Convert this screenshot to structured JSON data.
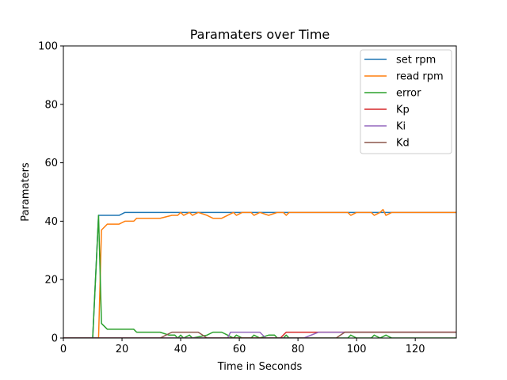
{
  "chart_data": {
    "type": "line",
    "title": "Paramaters over Time",
    "xlabel": "Time in Seconds",
    "ylabel": "Paramaters",
    "xlim": [
      0,
      134
    ],
    "ylim": [
      0,
      100
    ],
    "xticks": [
      0,
      20,
      40,
      60,
      80,
      100,
      120
    ],
    "yticks": [
      0,
      20,
      40,
      60,
      80,
      100
    ],
    "grid": false,
    "legend_position": "top-right",
    "series": [
      {
        "name": "set rpm",
        "color": "#1f77b4",
        "points": [
          [
            0,
            0
          ],
          [
            10,
            0
          ],
          [
            12,
            42
          ],
          [
            19,
            42
          ],
          [
            21,
            43
          ],
          [
            40,
            43
          ],
          [
            41,
            43
          ],
          [
            60,
            43
          ],
          [
            80,
            43
          ],
          [
            100,
            43
          ],
          [
            120,
            43
          ],
          [
            134,
            43
          ]
        ]
      },
      {
        "name": "read rpm",
        "color": "#ff7f0e",
        "points": [
          [
            0,
            0
          ],
          [
            12,
            0
          ],
          [
            13,
            37
          ],
          [
            15,
            39
          ],
          [
            19,
            39
          ],
          [
            21,
            40
          ],
          [
            24,
            40
          ],
          [
            25,
            41
          ],
          [
            33,
            41
          ],
          [
            37,
            42
          ],
          [
            39,
            42
          ],
          [
            40,
            43
          ],
          [
            41,
            42
          ],
          [
            43,
            43
          ],
          [
            44,
            42
          ],
          [
            46,
            43
          ],
          [
            49,
            42
          ],
          [
            51,
            41
          ],
          [
            54,
            41
          ],
          [
            56,
            42
          ],
          [
            58,
            43
          ],
          [
            59,
            42
          ],
          [
            61,
            43
          ],
          [
            64,
            43
          ],
          [
            65,
            42
          ],
          [
            67,
            43
          ],
          [
            70,
            42
          ],
          [
            73,
            43
          ],
          [
            75,
            43
          ],
          [
            76,
            42
          ],
          [
            77,
            43
          ],
          [
            80,
            43
          ],
          [
            97,
            43
          ],
          [
            98,
            42
          ],
          [
            100,
            43
          ],
          [
            105,
            43
          ],
          [
            106,
            42
          ],
          [
            108,
            43
          ],
          [
            109,
            44
          ],
          [
            110,
            42
          ],
          [
            112,
            43
          ],
          [
            120,
            43
          ],
          [
            134,
            43
          ]
        ]
      },
      {
        "name": "error",
        "color": "#2ca02c",
        "points": [
          [
            0,
            0
          ],
          [
            10,
            0
          ],
          [
            12,
            42
          ],
          [
            13,
            5
          ],
          [
            15,
            3
          ],
          [
            24,
            3
          ],
          [
            25,
            2
          ],
          [
            33,
            2
          ],
          [
            36,
            1
          ],
          [
            38,
            1
          ],
          [
            39,
            0
          ],
          [
            40,
            1
          ],
          [
            41,
            0
          ],
          [
            43,
            1
          ],
          [
            44,
            0
          ],
          [
            49,
            1
          ],
          [
            51,
            2
          ],
          [
            54,
            2
          ],
          [
            56,
            1
          ],
          [
            58,
            0
          ],
          [
            59,
            1
          ],
          [
            61,
            0
          ],
          [
            64,
            0
          ],
          [
            65,
            1
          ],
          [
            67,
            0
          ],
          [
            70,
            1
          ],
          [
            72,
            1
          ],
          [
            73,
            0
          ],
          [
            75,
            0
          ],
          [
            76,
            1
          ],
          [
            77,
            0
          ],
          [
            97,
            0
          ],
          [
            98,
            1
          ],
          [
            100,
            0
          ],
          [
            105,
            0
          ],
          [
            106,
            1
          ],
          [
            108,
            0
          ],
          [
            110,
            1
          ],
          [
            112,
            0
          ],
          [
            134,
            0
          ]
        ]
      },
      {
        "name": "Kp",
        "color": "#d62728",
        "points": [
          [
            0,
            0
          ],
          [
            74,
            0
          ],
          [
            76,
            2
          ],
          [
            134,
            2
          ]
        ]
      },
      {
        "name": "Ki",
        "color": "#9467bd",
        "points": [
          [
            0,
            0
          ],
          [
            56,
            0
          ],
          [
            57,
            2
          ],
          [
            67,
            2
          ],
          [
            69,
            0
          ],
          [
            82,
            0
          ],
          [
            87,
            2
          ],
          [
            134,
            2
          ]
        ]
      },
      {
        "name": "Kd",
        "color": "#8c564b",
        "points": [
          [
            0,
            0
          ],
          [
            33,
            0
          ],
          [
            37,
            2
          ],
          [
            46,
            2
          ],
          [
            49,
            0
          ],
          [
            93,
            0
          ],
          [
            96,
            2
          ],
          [
            134,
            2
          ]
        ]
      }
    ]
  }
}
